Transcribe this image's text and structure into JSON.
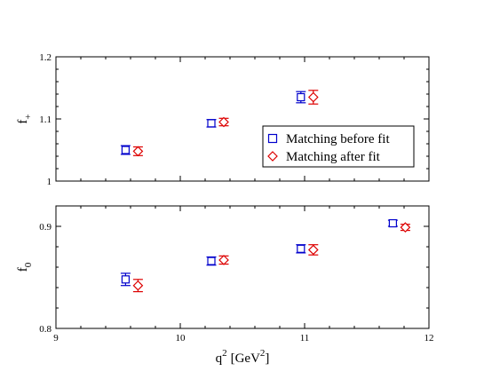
{
  "chart_data": [
    {
      "type": "scatter",
      "panel": "top",
      "xlim": [
        9,
        12
      ],
      "ylim": [
        1,
        1.2
      ],
      "yticks": [
        "1",
        "1.1",
        "1.2"
      ],
      "ylabel": {
        "base": "f",
        "sub": "+"
      },
      "legend": {
        "placement": "center-right",
        "entries": [
          "Matching before fit",
          "Matching after fit"
        ]
      },
      "series": [
        {
          "name": "Matching before fit",
          "marker": "square",
          "color": "#0000cc",
          "points": [
            {
              "x": 9.56,
              "y": 1.05,
              "err": 0.007
            },
            {
              "x": 10.25,
              "y": 1.093,
              "err": 0.006
            },
            {
              "x": 10.97,
              "y": 1.135,
              "err": 0.009
            }
          ]
        },
        {
          "name": "Matching after fit",
          "marker": "diamond",
          "color": "#dd0000",
          "points": [
            {
              "x": 9.66,
              "y": 1.048,
              "err": 0.007
            },
            {
              "x": 10.35,
              "y": 1.095,
              "err": 0.006
            },
            {
              "x": 11.07,
              "y": 1.135,
              "err": 0.011
            }
          ]
        }
      ]
    },
    {
      "type": "scatter",
      "panel": "bottom",
      "xlim": [
        9,
        12
      ],
      "ylim": [
        0.8,
        0.92
      ],
      "xticks": [
        "9",
        "10",
        "11",
        "12"
      ],
      "yticks": [
        "0.8",
        "0.9"
      ],
      "ylabel": {
        "base": "f",
        "sub": "0"
      },
      "xlabel": {
        "base": "q",
        "sup": "2",
        "unit": "[GeV",
        "unit_sup": "2",
        "unit_close": "]"
      },
      "series": [
        {
          "name": "Matching before fit",
          "marker": "square",
          "color": "#0000cc",
          "points": [
            {
              "x": 9.56,
              "y": 0.848,
              "err": 0.006
            },
            {
              "x": 10.25,
              "y": 0.866,
              "err": 0.004
            },
            {
              "x": 10.97,
              "y": 0.878,
              "err": 0.004
            },
            {
              "x": 11.71,
              "y": 0.903,
              "err": 0.003
            }
          ]
        },
        {
          "name": "Matching after fit",
          "marker": "diamond",
          "color": "#dd0000",
          "points": [
            {
              "x": 9.66,
              "y": 0.842,
              "err": 0.006
            },
            {
              "x": 10.35,
              "y": 0.867,
              "err": 0.004
            },
            {
              "x": 11.07,
              "y": 0.877,
              "err": 0.005
            },
            {
              "x": 11.81,
              "y": 0.899,
              "err": 0.003
            }
          ]
        }
      ]
    }
  ]
}
